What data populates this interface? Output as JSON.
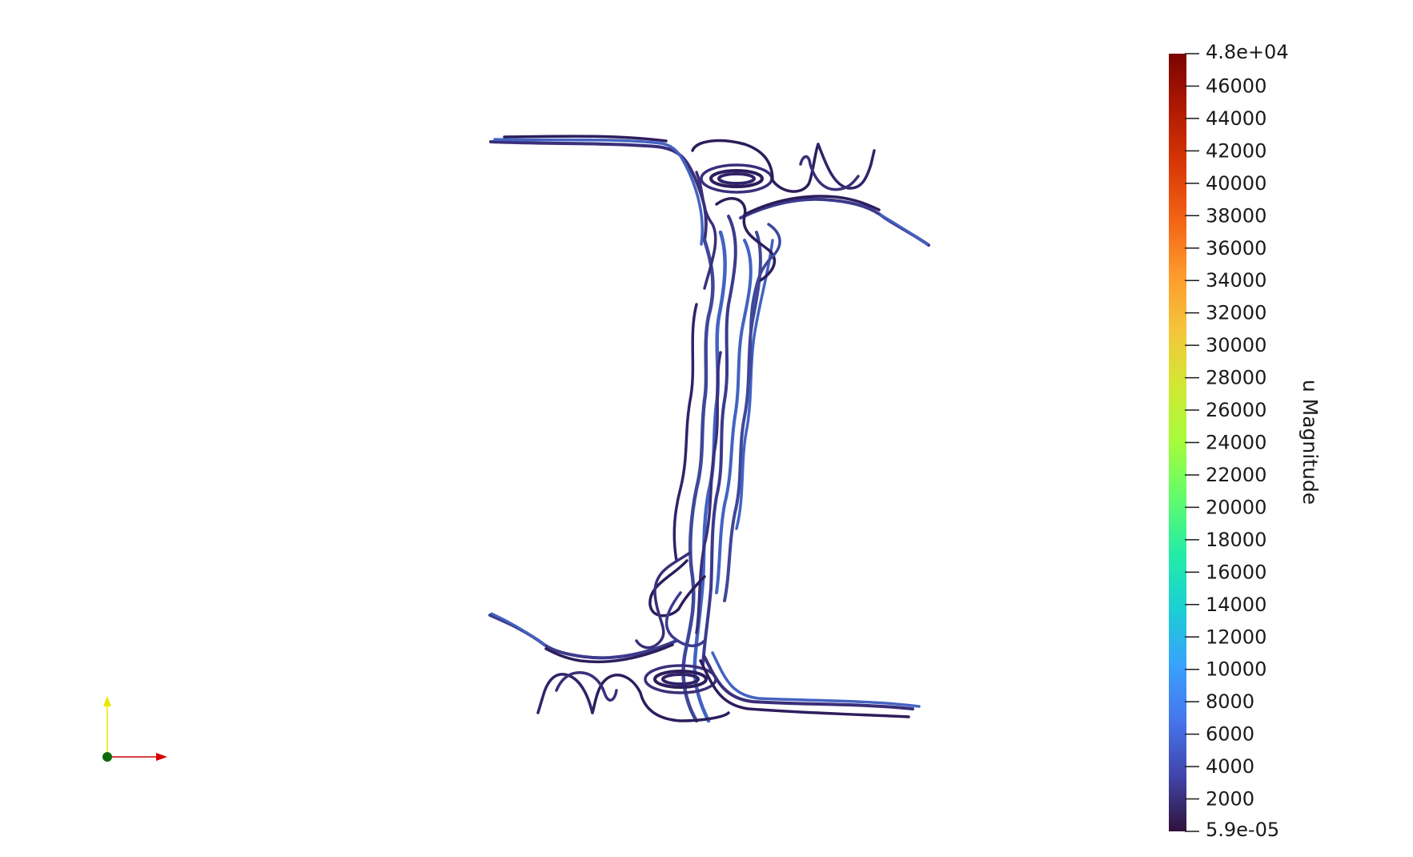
{
  "colorbar": {
    "title": "u Magnitude",
    "max_label": "4.8e+04",
    "min_label": "5.9e-05",
    "range": [
      5.9e-05,
      48000
    ],
    "ticks": [
      46000,
      44000,
      42000,
      40000,
      38000,
      36000,
      34000,
      32000,
      30000,
      28000,
      26000,
      24000,
      22000,
      20000,
      18000,
      16000,
      14000,
      12000,
      10000,
      8000,
      6000,
      4000,
      2000
    ],
    "tick_labels": [
      "46000",
      "44000",
      "42000",
      "40000",
      "38000",
      "36000",
      "34000",
      "32000",
      "30000",
      "28000",
      "26000",
      "24000",
      "22000",
      "20000",
      "18000",
      "16000",
      "14000",
      "12000",
      "10000",
      "8000",
      "6000",
      "4000",
      "2000"
    ],
    "colormap": [
      "#30123b",
      "#4145ab",
      "#4675ed",
      "#39a2fc",
      "#1bcfd4",
      "#24eca6",
      "#61fc6c",
      "#a4fc3b",
      "#d1e834",
      "#f3c63a",
      "#fe9b2d",
      "#f36315",
      "#d93806",
      "#b11901",
      "#7a0402"
    ]
  },
  "streamlines": {
    "colors": [
      "#2d1d5c",
      "#3a2f7a",
      "#3f479a",
      "#4363c2",
      "#3c3a8c",
      "#31226a"
    ]
  },
  "axes_triad": {
    "y_color": "#e8e800",
    "x_color": "#d40000",
    "origin_color": "#0a6a0a"
  }
}
